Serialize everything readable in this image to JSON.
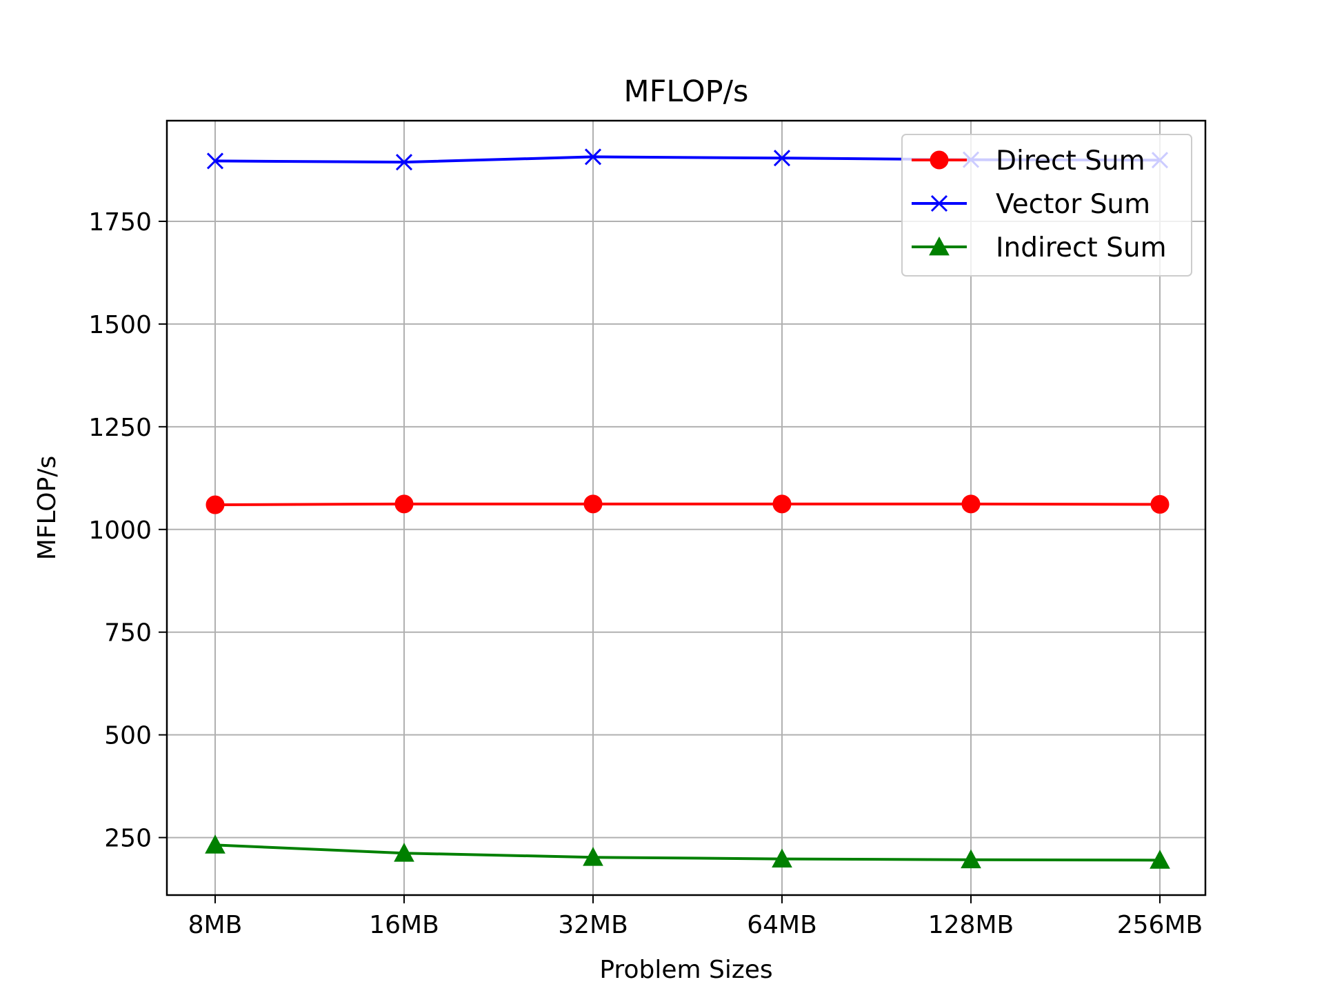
{
  "chart_data": {
    "type": "line",
    "title": "MFLOP/s",
    "xlabel": "Problem Sizes",
    "ylabel": "MFLOP/s",
    "categories": [
      "8MB",
      "16MB",
      "32MB",
      "64MB",
      "128MB",
      "256MB"
    ],
    "ylim": [
      110,
      1995
    ],
    "yticks": [
      250,
      500,
      750,
      1000,
      1250,
      1500,
      1750
    ],
    "grid": true,
    "legend_position": "top-right",
    "series": [
      {
        "name": "Direct Sum",
        "color": "#ff0000",
        "marker": "circle",
        "values": [
          1060,
          1062,
          1062,
          1062,
          1062,
          1061
        ]
      },
      {
        "name": "Vector Sum",
        "color": "#0000ff",
        "marker": "x",
        "values": [
          1897,
          1894,
          1907,
          1904,
          1900,
          1899
        ]
      },
      {
        "name": "Indirect Sum",
        "color": "#008000",
        "marker": "triangle",
        "values": [
          232,
          212,
          202,
          198,
          196,
          195
        ]
      }
    ]
  }
}
